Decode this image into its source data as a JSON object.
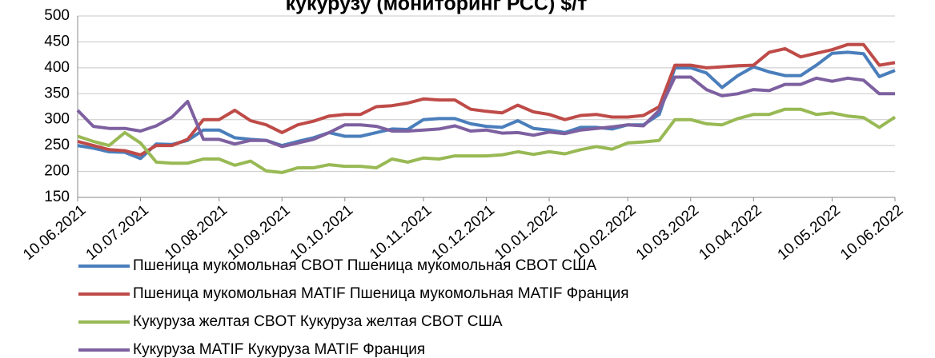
{
  "chart_data": {
    "type": "line",
    "title": "кукурузу (мониторинг РСС) $/т",
    "categories": [
      "10.06.2021",
      null,
      null,
      null,
      "10.07.2021",
      null,
      null,
      null,
      null,
      "10.08.2021",
      null,
      null,
      null,
      "10.09.2021",
      null,
      null,
      null,
      "10.10.2021",
      null,
      null,
      null,
      null,
      "10.11.2021",
      null,
      null,
      null,
      "10.12.2021",
      null,
      null,
      null,
      "10.01.2022",
      null,
      null,
      null,
      null,
      "10.02.2022",
      null,
      null,
      null,
      "10.03.2022",
      null,
      null,
      null,
      "10.04.2022",
      null,
      null,
      null,
      null,
      "10.05.2022",
      null,
      null,
      null,
      "10.06.2022"
    ],
    "series": [
      {
        "name": "Пшеница мукомольная CBOT Пшеница мукомольная CBOT США",
        "color": "#4a7ebb",
        "values": [
          250,
          245,
          238,
          237,
          225,
          253,
          252,
          260,
          280,
          280,
          265,
          262,
          260,
          250,
          258,
          265,
          275,
          268,
          268,
          275,
          282,
          281,
          300,
          302,
          302,
          292,
          287,
          285,
          298,
          283,
          280,
          275,
          285,
          285,
          282,
          290,
          290,
          310,
          400,
          400,
          390,
          362,
          385,
          402,
          392,
          385,
          385,
          405,
          428,
          430,
          427,
          383,
          395
        ]
      },
      {
        "name": "Пшеница мукомольная MATIF Пшеница мукомольная MATIF Франция",
        "color": "#be4b48",
        "values": [
          258,
          250,
          242,
          240,
          232,
          250,
          250,
          262,
          300,
          300,
          318,
          298,
          290,
          275,
          290,
          297,
          307,
          310,
          310,
          325,
          327,
          332,
          340,
          338,
          338,
          320,
          316,
          313,
          328,
          315,
          310,
          300,
          308,
          310,
          305,
          305,
          308,
          325,
          405,
          405,
          400,
          402,
          404,
          405,
          430,
          437,
          421,
          428,
          435,
          445,
          445,
          405,
          410
        ]
      },
      {
        "name": "Кукуруза желтая CBOT Кукуруза желтая CBOT США",
        "color": "#98b954",
        "values": [
          268,
          258,
          250,
          275,
          255,
          218,
          216,
          216,
          224,
          224,
          212,
          220,
          201,
          198,
          207,
          207,
          213,
          210,
          210,
          207,
          224,
          218,
          226,
          224,
          230,
          230,
          230,
          232,
          238,
          233,
          238,
          234,
          242,
          248,
          243,
          255,
          257,
          260,
          300,
          300,
          292,
          290,
          302,
          310,
          310,
          320,
          320,
          310,
          313,
          307,
          304,
          285,
          305
        ]
      },
      {
        "name": "Кукуруза MATIF Кукуруза MATIF Франция",
        "color": "#7d60a0",
        "values": [
          318,
          287,
          283,
          283,
          278,
          288,
          305,
          335,
          262,
          262,
          253,
          260,
          260,
          248,
          255,
          262,
          275,
          290,
          290,
          287,
          278,
          278,
          280,
          282,
          288,
          278,
          280,
          274,
          275,
          270,
          276,
          273,
          280,
          283,
          286,
          290,
          288,
          318,
          382,
          382,
          358,
          346,
          350,
          358,
          356,
          368,
          368,
          380,
          374,
          380,
          376,
          350,
          350
        ]
      }
    ],
    "ylim": [
      150,
      500
    ],
    "yticks": [
      150,
      200,
      250,
      300,
      350,
      400,
      450,
      500
    ],
    "grid": true
  }
}
